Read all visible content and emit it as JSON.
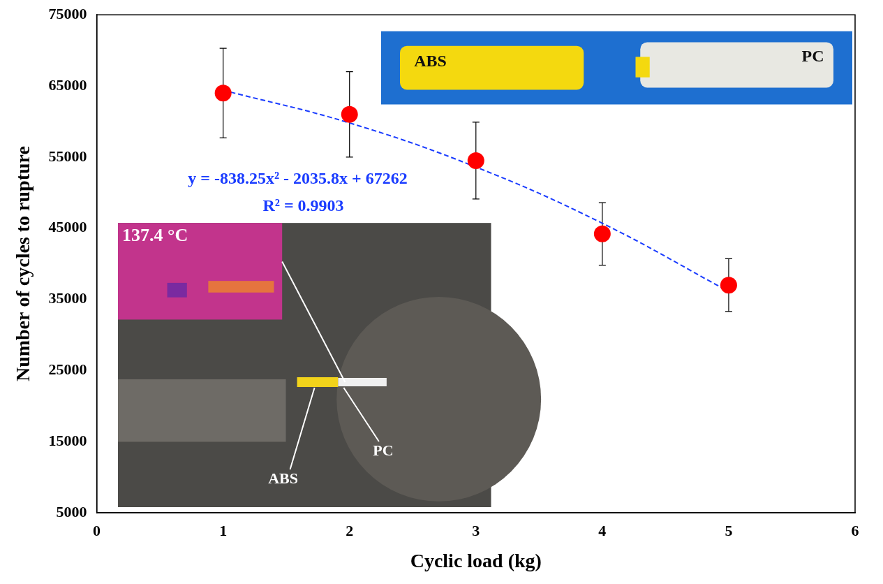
{
  "chart_data": {
    "type": "scatter",
    "x_label": "Cyclic load (kg)",
    "y_label": "Number of cycles to rupture",
    "x": [
      1,
      2,
      3,
      4,
      5
    ],
    "series": [
      {
        "type": "scatter",
        "color": "#ff0000",
        "marker": "circle",
        "values": [
          64000,
          61000,
          54500,
          44200,
          37000
        ],
        "errors": [
          6300,
          6000,
          5400,
          4400,
          3700
        ]
      },
      {
        "type": "line",
        "color": "#1a3cff",
        "line_style": "dashed",
        "values": [
          64400,
          59800,
          53600,
          45700,
          36100
        ]
      }
    ],
    "xlim": [
      0,
      6
    ],
    "xticks": [
      0,
      1,
      2,
      3,
      4,
      5,
      6
    ],
    "ylim": [
      5000,
      75000
    ],
    "yticks": [
      5000,
      15000,
      25000,
      35000,
      45000,
      55000,
      65000,
      75000
    ],
    "grid": false,
    "annotations": [
      "y = -838.25x² - 2035.8x + 67262",
      "R² = 0.9903"
    ],
    "photo_labels": [
      "ABS",
      "PC"
    ],
    "thermal_label": "137.4 °C"
  }
}
